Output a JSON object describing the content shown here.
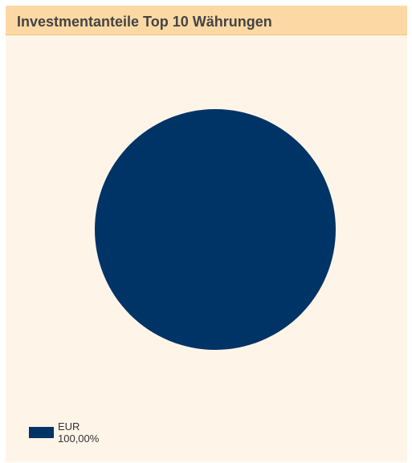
{
  "header": {
    "title": "Investmentanteile Top 10 Währungen"
  },
  "colors": {
    "panel_background": "#fef5e8",
    "header_background": "#fcd9a4",
    "eur": "#003366"
  },
  "chart_data": {
    "type": "pie",
    "title": "Investmentanteile Top 10 Währungen",
    "legend_position": "bottom-left",
    "slices": [
      {
        "label": "EUR",
        "value": 100.0,
        "value_label": "100,00%",
        "color": "#003366"
      }
    ]
  }
}
